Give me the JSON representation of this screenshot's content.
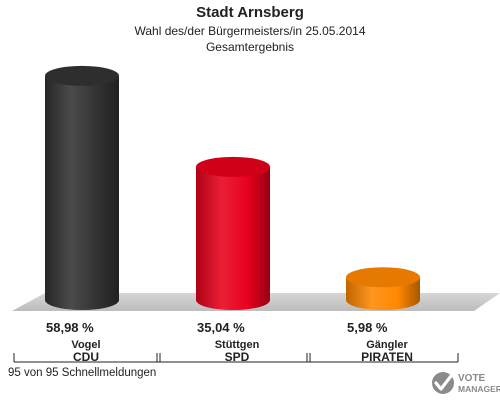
{
  "header": {
    "title": "Stadt Arnsberg",
    "subtitle": "Wahl des/der Bürgermeisters/in  25.05.2014",
    "subtitle2": "Gesamtergebnis"
  },
  "footer": {
    "text": "95 von 95 Schnellmeldungen"
  },
  "logo": {
    "line1": "VOTE",
    "line2": "MANAGER"
  },
  "chart_data": {
    "type": "bar",
    "title": "Stadt Arnsberg",
    "categories": [
      "CDU",
      "SPD",
      "PIRATEN"
    ],
    "candidates": [
      "Vogel",
      "Stüttgen",
      "Gängler"
    ],
    "values": [
      58.98,
      35.04,
      5.98
    ],
    "value_labels": [
      "58,98 %",
      "35,04 %",
      "5,98 %"
    ],
    "unit": "%",
    "colors": [
      "#333333",
      "#e8001c",
      "#ff8800"
    ],
    "ylim": [
      0,
      60
    ],
    "grid": false
  }
}
